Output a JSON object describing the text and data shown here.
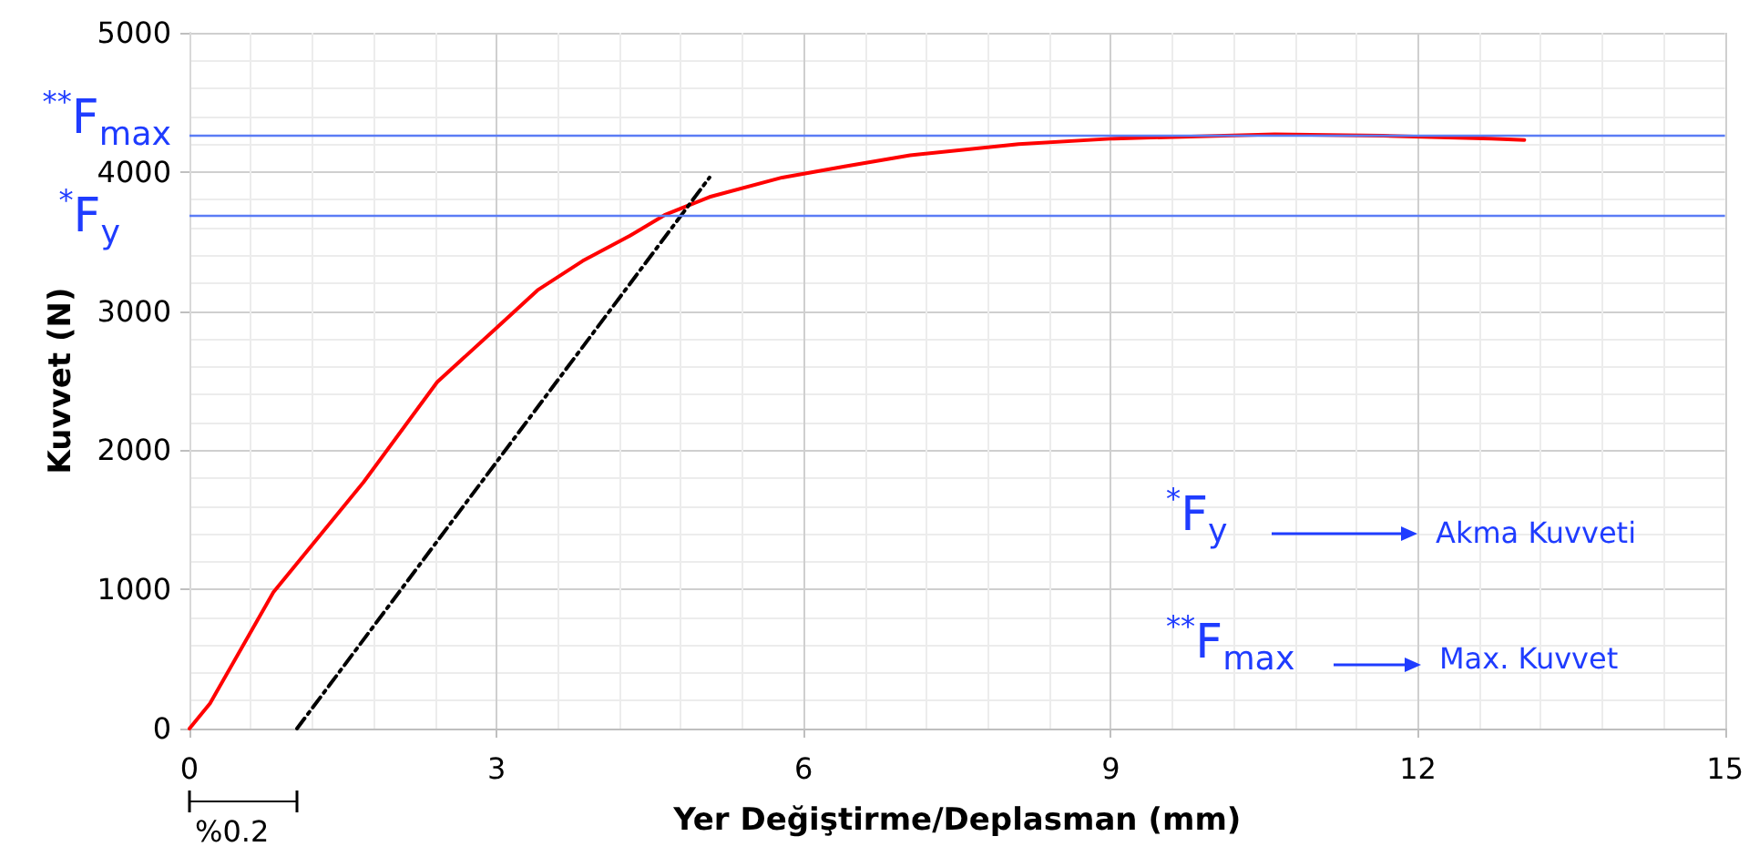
{
  "chart_data": {
    "type": "line",
    "xlabel": "Yer Değiştirme/Deplasman (mm)",
    "ylabel": "Kuvvet (N)",
    "xlim": [
      0,
      15
    ],
    "xticks": [
      0,
      3,
      6,
      9,
      12,
      15
    ],
    "ylim": [
      0,
      5000
    ],
    "yticks": [
      0,
      1000,
      2000,
      3000,
      4000,
      5000
    ],
    "grid": true,
    "marker": "none",
    "series": [
      {
        "color": "#ff0000",
        "line_style": "solid",
        "x": [
          0,
          0.2,
          0.82,
          1.7,
          2.42,
          3,
          3.4,
          3.84,
          4.3,
          4.64,
          5.08,
          5.79,
          6.4,
          7.04,
          8.1,
          9.03,
          10.6,
          11.66,
          12.72,
          13.04
        ],
        "values": [
          0,
          180,
          980,
          1770,
          2490,
          2880,
          3150,
          3360,
          3540,
          3690,
          3820,
          3960,
          4040,
          4120,
          4200,
          4240,
          4270,
          4260,
          4240,
          4230
        ]
      },
      {
        "color": "#000000",
        "line_style": "dashed",
        "x": [
          1.05,
          5.08
        ],
        "values": [
          0,
          3960
        ]
      }
    ],
    "ref_lines": [
      {
        "axis": "y",
        "value": 4270,
        "label": "$^{**}$F$_{max}$",
        "color": "#5b7cf5"
      },
      {
        "axis": "y",
        "value": 3690,
        "label": "$^{*}$F$_{y}$",
        "color": "#5b7cf5"
      }
    ],
    "annotations": [
      "$^{*}$F$_{y}$",
      "Akma Kuvveti",
      "$^{**}$F$_{max}$",
      "Max. Kuvvet",
      "%0.2"
    ]
  }
}
